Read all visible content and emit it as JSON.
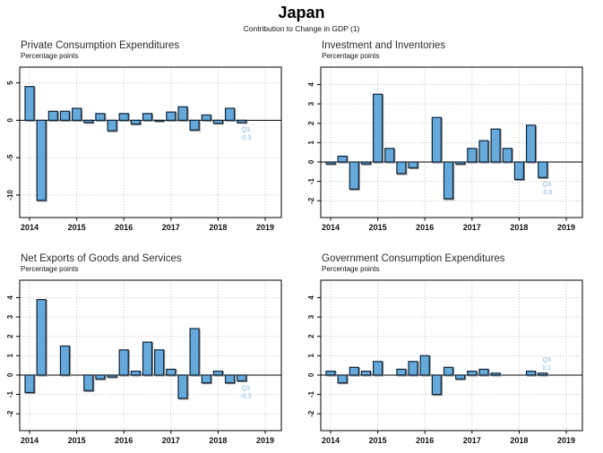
{
  "header": {
    "title": "Japan",
    "subtitle": "Contribution to Change in GDP (1)"
  },
  "axis": {
    "x_labels": [
      "2014",
      "2015",
      "2016",
      "2017",
      "2018",
      "2019"
    ]
  },
  "colors": {
    "bar_fill": "#66aadc",
    "bar_stroke": "#0d2237",
    "bar_shadow": "#909090",
    "annotation": "#7fb4e2",
    "grid": "#c0c0c0",
    "axis": "#000000"
  },
  "chart_data": [
    {
      "type": "bar",
      "title": "Private Consumption Expenditures",
      "ylabel": "Percentage points",
      "categories": [
        "2014 Q1",
        "2014 Q2",
        "2014 Q3",
        "2014 Q4",
        "2015 Q1",
        "2015 Q2",
        "2015 Q3",
        "2015 Q4",
        "2016 Q1",
        "2016 Q2",
        "2016 Q3",
        "2016 Q4",
        "2017 Q1",
        "2017 Q2",
        "2017 Q3",
        "2017 Q4",
        "2018 Q1",
        "2018 Q2",
        "2018 Q3"
      ],
      "values": [
        4.5,
        -10.7,
        1.2,
        1.2,
        1.6,
        -0.3,
        0.9,
        -1.4,
        0.9,
        -0.5,
        0.9,
        -0.1,
        1.1,
        1.8,
        -1.3,
        0.7,
        -0.4,
        1.6,
        -0.3
      ],
      "yticks": [
        5,
        0,
        -5,
        -10
      ],
      "ylim": [
        -13.0,
        7.1
      ],
      "x_labels": [
        "2014",
        "2015",
        "2016",
        "2017",
        "2018",
        "2019"
      ],
      "legend": "none",
      "grid": "dotted",
      "annotation": {
        "label": "Q3",
        "value": "-0.3"
      }
    },
    {
      "type": "bar",
      "title": "Investment and Inventories",
      "ylabel": "Percentage points",
      "categories": [
        "2014 Q1",
        "2014 Q2",
        "2014 Q3",
        "2014 Q4",
        "2015 Q1",
        "2015 Q2",
        "2015 Q3",
        "2015 Q4",
        "2016 Q1",
        "2016 Q2",
        "2016 Q3",
        "2016 Q4",
        "2017 Q1",
        "2017 Q2",
        "2017 Q3",
        "2017 Q4",
        "2018 Q1",
        "2018 Q2",
        "2018 Q3"
      ],
      "values": [
        -0.1,
        0.3,
        -1.4,
        -0.1,
        3.5,
        0.7,
        -0.6,
        -0.3,
        0.0,
        2.3,
        -1.9,
        -0.1,
        0.7,
        1.1,
        1.7,
        0.7,
        -0.9,
        1.9,
        -0.8
      ],
      "yticks": [
        4,
        3,
        2,
        1,
        0,
        -1,
        -2
      ],
      "ylim": [
        -2.87,
        4.9
      ],
      "x_labels": [
        "2014",
        "2015",
        "2016",
        "2017",
        "2018",
        "2019"
      ],
      "legend": "none",
      "grid": "dotted",
      "annotation": {
        "label": "Q3",
        "value": "-0.8"
      }
    },
    {
      "type": "bar",
      "title": "Net Exports of Goods and Services",
      "ylabel": "Percentage points",
      "categories": [
        "2014 Q1",
        "2014 Q2",
        "2014 Q3",
        "2014 Q4",
        "2015 Q1",
        "2015 Q2",
        "2015 Q3",
        "2015 Q4",
        "2016 Q1",
        "2016 Q2",
        "2016 Q3",
        "2016 Q4",
        "2017 Q1",
        "2017 Q2",
        "2017 Q3",
        "2017 Q4",
        "2018 Q1",
        "2018 Q2",
        "2018 Q3"
      ],
      "values": [
        -0.9,
        3.9,
        0.0,
        1.5,
        0.0,
        -0.8,
        -0.2,
        -0.1,
        1.3,
        0.2,
        1.7,
        1.3,
        0.3,
        -1.2,
        2.4,
        -0.4,
        0.2,
        -0.4,
        -0.3
      ],
      "yticks": [
        4,
        3,
        2,
        1,
        0,
        -1,
        -2
      ],
      "ylim": [
        -2.87,
        4.9
      ],
      "x_labels": [
        "2014",
        "2015",
        "2016",
        "2017",
        "2018",
        "2019"
      ],
      "legend": "none",
      "grid": "dotted",
      "annotation": {
        "label": "Q3",
        "value": "-0.3"
      }
    },
    {
      "type": "bar",
      "title": "Government Consumption Expenditures",
      "ylabel": "Percentage points",
      "categories": [
        "2014 Q1",
        "2014 Q2",
        "2014 Q3",
        "2014 Q4",
        "2015 Q1",
        "2015 Q2",
        "2015 Q3",
        "2015 Q4",
        "2016 Q1",
        "2016 Q2",
        "2016 Q3",
        "2016 Q4",
        "2017 Q1",
        "2017 Q2",
        "2017 Q3",
        "2017 Q4",
        "2018 Q1",
        "2018 Q2",
        "2018 Q3"
      ],
      "values": [
        0.2,
        -0.4,
        0.4,
        0.2,
        0.7,
        0.0,
        0.3,
        0.7,
        1.0,
        -1.0,
        0.4,
        -0.2,
        0.2,
        0.3,
        0.1,
        0.0,
        0.0,
        0.2,
        0.1
      ],
      "yticks": [
        4,
        3,
        2,
        1,
        0,
        -1,
        -2
      ],
      "ylim": [
        -2.87,
        4.9
      ],
      "x_labels": [
        "2014",
        "2015",
        "2016",
        "2017",
        "2018",
        "2019"
      ],
      "legend": "none",
      "grid": "dotted",
      "annotation": {
        "label": "Q3",
        "value": "0.1"
      }
    }
  ]
}
